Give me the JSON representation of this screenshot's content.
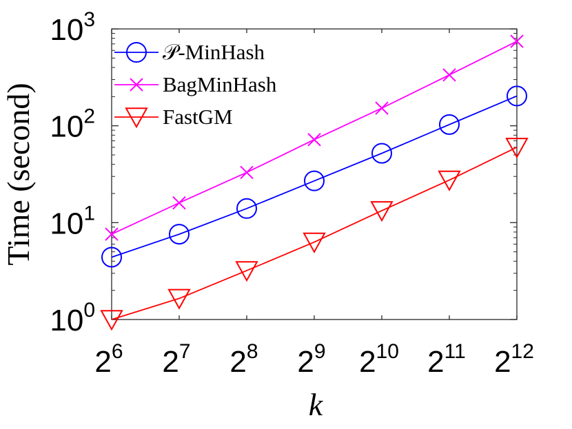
{
  "chart_data": {
    "type": "line",
    "xlabel": "k",
    "ylabel": "Time (second)",
    "x_scale": "log2",
    "y_scale": "log10",
    "x_ticks": [
      {
        "base": "2",
        "exp": "6",
        "value": 64
      },
      {
        "base": "2",
        "exp": "7",
        "value": 128
      },
      {
        "base": "2",
        "exp": "8",
        "value": 256
      },
      {
        "base": "2",
        "exp": "9",
        "value": 512
      },
      {
        "base": "2",
        "exp": "10",
        "value": 1024
      },
      {
        "base": "2",
        "exp": "11",
        "value": 2048
      },
      {
        "base": "2",
        "exp": "12",
        "value": 4096
      }
    ],
    "y_ticks": [
      {
        "base": "10",
        "exp": "0",
        "value": 1
      },
      {
        "base": "10",
        "exp": "1",
        "value": 10
      },
      {
        "base": "10",
        "exp": "2",
        "value": 100
      },
      {
        "base": "10",
        "exp": "3",
        "value": 1000
      }
    ],
    "xlim": [
      64,
      4096
    ],
    "ylim": [
      1,
      1000
    ],
    "grid": false,
    "legend_position": "top-left",
    "x": [
      64,
      128,
      256,
      512,
      1024,
      2048,
      4096
    ],
    "series": [
      {
        "name": "𝒫-MinHash",
        "color": "#0000ff",
        "marker": "circle",
        "values": [
          4.4,
          7.6,
          14,
          27,
          52,
          103,
          203
        ]
      },
      {
        "name": "BagMinHash",
        "color": "#ff00ff",
        "marker": "x",
        "values": [
          7.6,
          16,
          33,
          72,
          152,
          335,
          745
        ]
      },
      {
        "name": "FastGM",
        "color": "#ff0000",
        "marker": "triangle-down",
        "values": [
          1.0,
          1.65,
          3.2,
          6.3,
          13.3,
          27.5,
          60
        ]
      }
    ]
  }
}
